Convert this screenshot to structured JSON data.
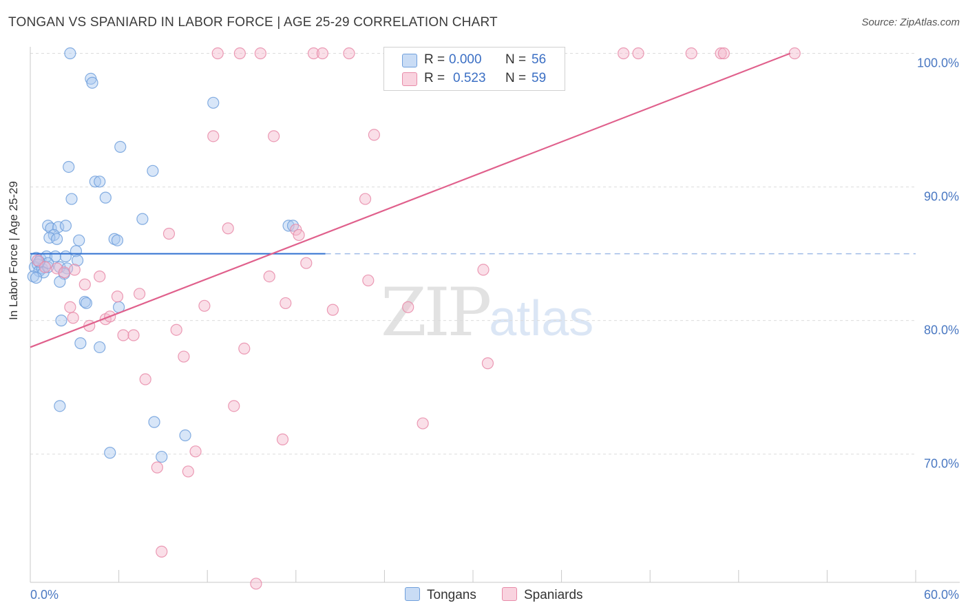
{
  "title": "TONGAN VS SPANIARD IN LABOR FORCE | AGE 25-29 CORRELATION CHART",
  "source": "Source: ZipAtlas.com",
  "watermark": {
    "zip": "ZIP",
    "atlas": "atlas"
  },
  "legend": {
    "r_label": "R =",
    "n_label": "N =",
    "rows": [
      {
        "name": "Tongans",
        "r": "0.000",
        "n": "56",
        "color": "#a9c8ef",
        "border": "#6f9fdc"
      },
      {
        "name": "Spaniards",
        "r": "0.523",
        "n": "59",
        "color": "#f5b8cb",
        "border": "#e88aa8"
      }
    ]
  },
  "chart_data": {
    "type": "scatter",
    "title": "TONGAN VS SPANIARD IN LABOR FORCE | AGE 25-29 CORRELATION CHART",
    "xlabel": "",
    "ylabel": "In Labor Force | Age 25-29",
    "xlim": [
      0,
      60
    ],
    "ylim": [
      60.4,
      100.8
    ],
    "x_tick_labels": [
      "0.0%",
      "60.0%"
    ],
    "y_ticks": [
      70,
      80,
      90,
      100
    ],
    "y_tick_labels": [
      "70.0%",
      "80.0%",
      "90.0%",
      "100.0%"
    ],
    "series": [
      {
        "name": "Tongans",
        "color": "#6f9fdc",
        "fill": "#a9c8ef",
        "trend": {
          "x": [
            0,
            20
          ],
          "y": [
            85.0,
            85.0
          ],
          "dashed_extension_to_x": 60
        },
        "points": [
          [
            2.7,
            100.0
          ],
          [
            4.1,
            98.1
          ],
          [
            4.2,
            97.8
          ],
          [
            12.4,
            96.3
          ],
          [
            6.1,
            93.0
          ],
          [
            2.6,
            91.5
          ],
          [
            8.3,
            91.2
          ],
          [
            4.4,
            90.4
          ],
          [
            4.7,
            90.4
          ],
          [
            2.8,
            89.1
          ],
          [
            5.1,
            89.2
          ],
          [
            7.6,
            87.6
          ],
          [
            1.2,
            87.1
          ],
          [
            1.4,
            86.9
          ],
          [
            1.9,
            87.0
          ],
          [
            2.4,
            87.1
          ],
          [
            17.5,
            87.1
          ],
          [
            17.8,
            87.1
          ],
          [
            1.6,
            86.4
          ],
          [
            1.3,
            86.2
          ],
          [
            1.8,
            86.1
          ],
          [
            5.7,
            86.1
          ],
          [
            5.9,
            86.0
          ],
          [
            3.3,
            86.0
          ],
          [
            0.4,
            84.7
          ],
          [
            0.7,
            84.6
          ],
          [
            1.1,
            84.8
          ],
          [
            1.7,
            84.8
          ],
          [
            2.4,
            84.8
          ],
          [
            3.1,
            85.2
          ],
          [
            3.2,
            84.5
          ],
          [
            0.3,
            84.0
          ],
          [
            0.5,
            84.2
          ],
          [
            0.6,
            83.7
          ],
          [
            0.8,
            83.9
          ],
          [
            0.9,
            83.6
          ],
          [
            1.2,
            84.0
          ],
          [
            2.0,
            84.0
          ],
          [
            2.5,
            83.9
          ],
          [
            0.2,
            83.3
          ],
          [
            0.4,
            83.2
          ],
          [
            2.3,
            83.5
          ],
          [
            2.0,
            82.9
          ],
          [
            3.7,
            81.4
          ],
          [
            3.8,
            81.3
          ],
          [
            6.0,
            81.0
          ],
          [
            2.1,
            80.0
          ],
          [
            3.4,
            78.3
          ],
          [
            4.7,
            78.0
          ],
          [
            2.0,
            73.6
          ],
          [
            8.4,
            72.4
          ],
          [
            10.5,
            71.4
          ],
          [
            5.4,
            70.1
          ],
          [
            8.9,
            69.8
          ],
          [
            1.2,
            84.3
          ],
          [
            0.6,
            84.4
          ]
        ]
      },
      {
        "name": "Spaniards",
        "color": "#e88aa8",
        "fill": "#f5b8cb",
        "trend": {
          "x": [
            0,
            51.5
          ],
          "y": [
            78.0,
            100.0
          ]
        },
        "points": [
          [
            12.7,
            100.0
          ],
          [
            14.2,
            100.0
          ],
          [
            15.6,
            100.0
          ],
          [
            19.2,
            100.0
          ],
          [
            19.8,
            100.0
          ],
          [
            21.6,
            100.0
          ],
          [
            24.7,
            100.0
          ],
          [
            24.9,
            100.0
          ],
          [
            40.2,
            100.0
          ],
          [
            41.2,
            100.0
          ],
          [
            44.8,
            100.0
          ],
          [
            46.8,
            100.0
          ],
          [
            47.0,
            100.0
          ],
          [
            51.8,
            100.0
          ],
          [
            12.4,
            93.8
          ],
          [
            16.5,
            93.8
          ],
          [
            23.3,
            93.9
          ],
          [
            22.7,
            89.1
          ],
          [
            13.4,
            86.9
          ],
          [
            9.4,
            86.5
          ],
          [
            18.0,
            86.8
          ],
          [
            18.2,
            86.4
          ],
          [
            18.7,
            84.3
          ],
          [
            30.7,
            83.8
          ],
          [
            4.7,
            83.3
          ],
          [
            16.2,
            83.3
          ],
          [
            22.9,
            83.0
          ],
          [
            3.7,
            82.7
          ],
          [
            7.4,
            82.0
          ],
          [
            5.9,
            81.8
          ],
          [
            17.3,
            81.3
          ],
          [
            11.8,
            81.1
          ],
          [
            20.5,
            80.8
          ],
          [
            25.6,
            81.0
          ],
          [
            2.7,
            81.0
          ],
          [
            2.9,
            80.2
          ],
          [
            5.1,
            80.1
          ],
          [
            5.4,
            80.3
          ],
          [
            4.0,
            79.6
          ],
          [
            9.9,
            79.3
          ],
          [
            6.3,
            78.9
          ],
          [
            7.0,
            78.9
          ],
          [
            14.5,
            77.9
          ],
          [
            10.4,
            77.3
          ],
          [
            31.0,
            76.8
          ],
          [
            7.8,
            75.6
          ],
          [
            13.8,
            73.6
          ],
          [
            26.6,
            72.3
          ],
          [
            17.1,
            71.1
          ],
          [
            11.2,
            70.2
          ],
          [
            8.6,
            69.0
          ],
          [
            10.7,
            68.7
          ],
          [
            8.9,
            62.7
          ],
          [
            15.3,
            60.3
          ],
          [
            0.5,
            84.5
          ],
          [
            1.0,
            84.0
          ],
          [
            1.8,
            83.9
          ],
          [
            2.3,
            83.6
          ],
          [
            3.0,
            83.8
          ]
        ]
      }
    ]
  }
}
